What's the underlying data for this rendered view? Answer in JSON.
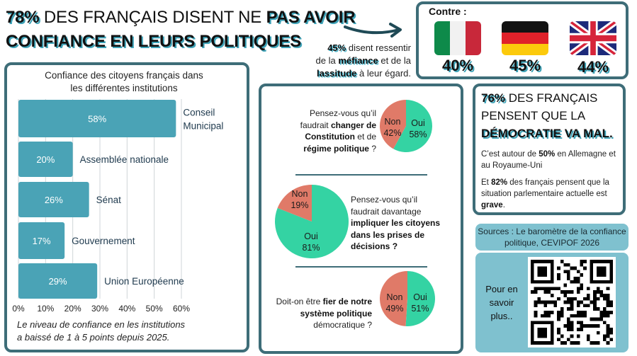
{
  "header": {
    "title_line1_parts": [
      {
        "text": "78%",
        "bold": true
      },
      {
        "text": " DES FRANÇAIS DISENT NE ",
        "bold": false
      },
      {
        "text": "PAS AVOIR",
        "bold": true
      }
    ],
    "title_line2": "CONFIANCE EN LEURS POLITIQUES",
    "mistrust": {
      "pct": "45%",
      "t1": " disent ressentir",
      "t2": "de la ",
      "w1": "méfiance",
      "t3": " et de la",
      "w2": "lassitude",
      "t4": " à leur égard."
    }
  },
  "contre": {
    "label": "Contre :",
    "countries": [
      {
        "name": "Italie",
        "flag": "italy-flag",
        "value": "40%"
      },
      {
        "name": "Allemagne",
        "flag": "germany-flag",
        "value": "45%"
      },
      {
        "name": "Royaume-Uni",
        "flag": "uk-flag",
        "value": "44%"
      }
    ]
  },
  "chart_data": [
    {
      "type": "bar",
      "orientation": "horizontal",
      "title": "Confiance des citoyens français dans les différentes institutions",
      "title_lines": [
        "Confiance des citoyens français dans",
        "les différentes institutions"
      ],
      "categories": [
        "Conseil Municipal",
        "Assemblée nationale",
        "Sénat",
        "Gouvernement",
        "Union Européenne"
      ],
      "category_lines": [
        [
          "Conseil",
          "Municipal"
        ],
        [
          "Assemblée nationale"
        ],
        [
          "Sénat"
        ],
        [
          "Gouvernement"
        ],
        [
          "Union Européenne"
        ]
      ],
      "values": [
        58,
        20,
        26,
        17,
        29
      ],
      "data_labels": [
        "58%",
        "20%",
        "26%",
        "17%",
        "29%"
      ],
      "xlim": [
        0,
        60
      ],
      "xticks": [
        "0%",
        "10%",
        "20%",
        "30%",
        "40%",
        "50%",
        "60%"
      ],
      "grid": true,
      "bar_color": "#4aa3b6",
      "note_lines": [
        "Le niveau de confiance en les institutions",
        "a baissé de 1 à 5 points depuis 2025."
      ]
    },
    {
      "type": "pie",
      "question_lines": [
        [
          {
            "t": "Pensez-vous qu’il",
            "b": false
          }
        ],
        [
          {
            "t": "faudrait ",
            "b": false
          },
          {
            "t": "changer de",
            "b": true
          }
        ],
        [
          {
            "t": "Constitution",
            "b": true
          },
          {
            "t": " et de",
            "b": false
          }
        ],
        [
          {
            "t": "régime politique",
            "b": true
          },
          {
            "t": " ?",
            "b": false
          }
        ]
      ],
      "slices": [
        {
          "label": "Oui",
          "value": 58,
          "color": "#34d3a3"
        },
        {
          "label": "Non",
          "value": 42,
          "color": "#e07a68"
        }
      ]
    },
    {
      "type": "pie",
      "question_lines": [
        [
          {
            "t": "Pensez-vous qu’il",
            "b": false
          }
        ],
        [
          {
            "t": "faudrait davantage",
            "b": false
          }
        ],
        [
          {
            "t": "impliquer les citoyens",
            "b": true
          }
        ],
        [
          {
            "t": "dans les prises de",
            "b": true
          }
        ],
        [
          {
            "t": "décisions ?",
            "b": true
          }
        ]
      ],
      "slices": [
        {
          "label": "Oui",
          "value": 81,
          "color": "#34d3a3"
        },
        {
          "label": "Non",
          "value": 19,
          "color": "#e07a68"
        }
      ]
    },
    {
      "type": "pie",
      "question_lines": [
        [
          {
            "t": "Doit-on être ",
            "b": false
          },
          {
            "t": "fier de notre",
            "b": true
          }
        ],
        [
          {
            "t": "système politique",
            "b": true
          }
        ],
        [
          {
            "t": "démocratique ?",
            "b": false
          }
        ]
      ],
      "slices": [
        {
          "label": "Oui",
          "value": 51,
          "color": "#34d3a3"
        },
        {
          "label": "Non",
          "value": 49,
          "color": "#e07a68"
        }
      ]
    }
  ],
  "democratie": {
    "pct": "76%",
    "l1": " DES FRANÇAIS",
    "l2": "PENSENT QUE LA",
    "l3": "DÉMOCRATIE VA MAL.",
    "p1a": "C’est autour de ",
    "p1b": "50%",
    "p1c": " en Allemagne et au Royaume-Uni",
    "p2a": "Et ",
    "p2b": "82%",
    "p2c": " des français pensent que la situation parlementaire actuelle est ",
    "p2d": "grave",
    "p2e": "."
  },
  "sources": {
    "text": "Sources : Le baromètre de la confiance politique, CEVIPOF 2026"
  },
  "more": {
    "text": "Pour en savoir plus..",
    "qr": "qr-code"
  }
}
